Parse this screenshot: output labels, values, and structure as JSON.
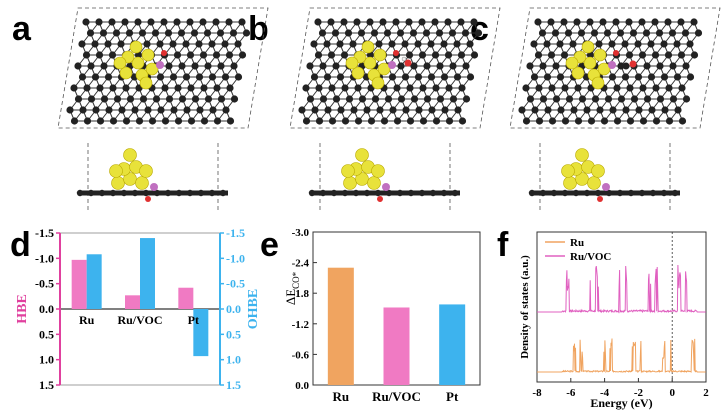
{
  "panel_letters": [
    "a",
    "b",
    "c",
    "d",
    "e",
    "f"
  ],
  "structure_panels": [
    {
      "letter": "a",
      "adsorbate": "none"
    },
    {
      "letter": "b",
      "adsorbate": "OH"
    },
    {
      "letter": "c",
      "adsorbate": "CO"
    }
  ],
  "chart_data": [
    {
      "panel": "d",
      "type": "bar",
      "categories": [
        "Ru",
        "Ru/VOC",
        "Pt"
      ],
      "series": [
        {
          "name": "",
          "axis": "left",
          "color": "#f07ac3",
          "values": [
            -0.97,
            -0.27,
            -0.42
          ]
        },
        {
          "name": "",
          "axis": "right",
          "color": "#3db3ee",
          "values": [
            -1.08,
            -1.4,
            0.93
          ]
        }
      ],
      "ylabel_left": "HBE",
      "ylabel_right": "OHBE",
      "ylim_left": [
        1.5,
        -1.5
      ],
      "ylim_right": [
        1.5,
        -1.5
      ],
      "left_ticks": [
        "-1.5",
        "-1.0",
        "-0.5",
        "0.0",
        "0.5",
        "1.0",
        "1.5"
      ],
      "right_ticks": [
        "-1.5",
        "-1.0",
        "-0.5",
        "0.0",
        "0.5",
        "1.0",
        "1.5"
      ],
      "left_axis_color": "#e0409e",
      "right_axis_color": "#3db3ee"
    },
    {
      "panel": "e",
      "type": "bar",
      "categories": [
        "Ru",
        "Ru/VOC",
        "Pt"
      ],
      "values": [
        -2.3,
        -1.52,
        -1.58
      ],
      "colors": [
        "#f0a460",
        "#f07ac3",
        "#3db3ee"
      ],
      "ylabel": "ΔE",
      "ylabel_sub": "CO*",
      "ylim": [
        0.0,
        -3.0
      ],
      "ticks": [
        "-3.0",
        "-2.4",
        "-1.8",
        "-1.2",
        "-0.6",
        "0.0"
      ]
    },
    {
      "panel": "f",
      "type": "line",
      "xlabel": "Energy (eV)",
      "ylabel": "Density of states (a.u.)",
      "xlim": [
        -8,
        2
      ],
      "x_ticks": [
        "-8",
        "-6",
        "-4",
        "-2",
        "0",
        "2"
      ],
      "series": [
        {
          "name": "Ru",
          "color": "#f0a460"
        },
        {
          "name": "Ru/VOC",
          "color": "#e060c0"
        }
      ]
    }
  ]
}
